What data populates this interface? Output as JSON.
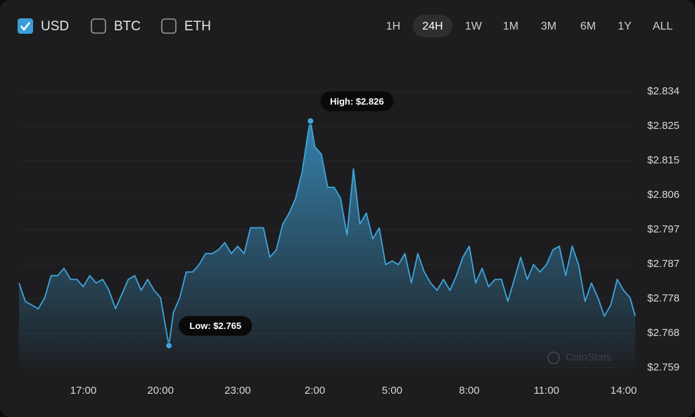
{
  "controls": {
    "currencies": [
      {
        "label": "USD",
        "checked": true
      },
      {
        "label": "BTC",
        "checked": false
      },
      {
        "label": "ETH",
        "checked": false
      }
    ],
    "ranges": [
      "1H",
      "24H",
      "1W",
      "1M",
      "3M",
      "6M",
      "1Y",
      "ALL"
    ],
    "selected_range": 1
  },
  "watermark": "CoinStats",
  "chart_data": {
    "type": "area",
    "color": "#3ea4dc",
    "grid": true,
    "x": [
      14.5,
      14.75,
      15,
      15.25,
      15.5,
      15.75,
      16,
      16.25,
      16.5,
      16.75,
      17,
      17.25,
      17.5,
      17.75,
      18,
      18.25,
      18.5,
      18.75,
      19,
      19.25,
      19.5,
      19.75,
      20,
      20.25,
      20.33,
      20.5,
      20.75,
      21,
      21.25,
      21.5,
      21.75,
      22,
      22.25,
      22.5,
      22.75,
      23,
      23.25,
      23.5,
      23.75,
      24,
      24.25,
      24.5,
      24.75,
      25,
      25.25,
      25.5,
      25.75,
      25.83,
      26,
      26.25,
      26.5,
      26.75,
      27,
      27.25,
      27.5,
      27.75,
      28,
      28.25,
      28.5,
      28.75,
      29,
      29.25,
      29.5,
      29.75,
      30,
      30.25,
      30.5,
      30.75,
      31,
      31.25,
      31.5,
      31.75,
      32,
      32.25,
      32.5,
      32.75,
      33,
      33.25,
      33.5,
      33.75,
      34,
      34.25,
      34.5,
      34.75,
      35,
      35.25,
      35.5,
      35.75,
      36,
      36.25,
      36.5,
      36.75,
      37,
      37.25,
      37.5,
      37.75,
      38,
      38.25,
      38.45
    ],
    "values": [
      2.782,
      2.777,
      2.776,
      2.775,
      2.778,
      2.784,
      2.784,
      2.786,
      2.783,
      2.783,
      2.781,
      2.784,
      2.782,
      2.783,
      2.78,
      2.775,
      2.779,
      2.783,
      2.784,
      2.78,
      2.783,
      2.78,
      2.778,
      2.768,
      2.765,
      2.774,
      2.778,
      2.785,
      2.785,
      2.787,
      2.79,
      2.79,
      2.791,
      2.793,
      2.79,
      2.792,
      2.79,
      2.797,
      2.797,
      2.797,
      2.789,
      2.791,
      2.798,
      2.801,
      2.805,
      2.812,
      2.8235,
      2.826,
      2.819,
      2.817,
      2.808,
      2.808,
      2.805,
      2.795,
      2.813,
      2.798,
      2.801,
      2.794,
      2.797,
      2.787,
      2.788,
      2.787,
      2.79,
      2.782,
      2.79,
      2.785,
      2.782,
      2.78,
      2.783,
      2.78,
      2.784,
      2.789,
      2.792,
      2.782,
      2.786,
      2.781,
      2.783,
      2.783,
      2.777,
      2.783,
      2.789,
      2.783,
      2.787,
      2.785,
      2.787,
      2.791,
      2.792,
      2.784,
      2.792,
      2.787,
      2.777,
      2.782,
      2.778,
      2.773,
      2.776,
      2.783,
      2.78,
      2.778,
      2.773
    ],
    "xlim": [
      14.5,
      38.45
    ],
    "xticks": [
      {
        "value": 17,
        "label": "17:00"
      },
      {
        "value": 20,
        "label": "20:00"
      },
      {
        "value": 23,
        "label": "23:00"
      },
      {
        "value": 26,
        "label": "2:00"
      },
      {
        "value": 29,
        "label": "5:00"
      },
      {
        "value": 32,
        "label": "8:00"
      },
      {
        "value": 35,
        "label": "11:00"
      },
      {
        "value": 38,
        "label": "14:00"
      }
    ],
    "ylim": [
      2.759,
      2.834
    ],
    "yticks": [
      {
        "value": 2.834,
        "label": "$2.834"
      },
      {
        "value": 2.824625,
        "label": "$2.825"
      },
      {
        "value": 2.81525,
        "label": "$2.815"
      },
      {
        "value": 2.805875,
        "label": "$2.806"
      },
      {
        "value": 2.7965,
        "label": "$2.797"
      },
      {
        "value": 2.787125,
        "label": "$2.787"
      },
      {
        "value": 2.77775,
        "label": "$2.778"
      },
      {
        "value": 2.768375,
        "label": "$2.768"
      },
      {
        "value": 2.759,
        "label": "$2.759"
      }
    ],
    "annotations": [
      {
        "text": "High: $2.826",
        "x": 25.83,
        "y": 2.826
      },
      {
        "text": "Low: $2.765",
        "x": 20.33,
        "y": 2.765
      }
    ]
  }
}
